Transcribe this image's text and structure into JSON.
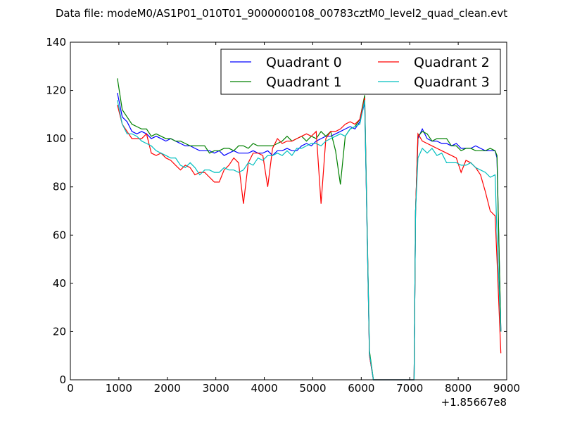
{
  "chart_data": {
    "type": "line",
    "title": "Data file: modeM0/AS1P01_010T01_9000000108_00783cztM0_level2_quad_clean.evt",
    "xlabel": "",
    "ylabel": "",
    "x_offset_label": "+1.85667e8",
    "xlim": [
      0,
      9000
    ],
    "ylim": [
      0,
      140
    ],
    "xticks": [
      0,
      1000,
      2000,
      3000,
      4000,
      5000,
      6000,
      7000,
      8000,
      9000
    ],
    "yticks": [
      0,
      20,
      40,
      60,
      80,
      100,
      120,
      140
    ],
    "grid": false,
    "legend": {
      "placement": "top-right",
      "columns": 2
    },
    "series": [
      {
        "name": "Quadrant 0",
        "color": "#0000ff",
        "x": [
          970,
          1070,
          1170,
          1270,
          1370,
          1470,
          1570,
          1670,
          1770,
          1870,
          1970,
          2070,
          2170,
          2270,
          2370,
          2470,
          2570,
          2670,
          2770,
          2870,
          2970,
          3070,
          3170,
          3270,
          3370,
          3470,
          3570,
          3670,
          3770,
          3870,
          3970,
          4070,
          4170,
          4270,
          4370,
          4470,
          4570,
          4670,
          4770,
          4870,
          4970,
          5070,
          5170,
          5270,
          5370,
          5470,
          5570,
          5670,
          5770,
          5870,
          5970,
          6070,
          6170,
          6250,
          6300,
          7090,
          7120,
          7170,
          7260,
          7360,
          7460,
          7560,
          7660,
          7760,
          7860,
          7960,
          8060,
          8160,
          8260,
          8360,
          8460,
          8560,
          8660,
          8760,
          8800,
          8880
        ],
        "values": [
          119,
          109,
          107,
          103,
          102,
          103,
          102,
          100,
          101,
          100,
          99,
          100,
          99,
          98,
          97,
          97,
          96,
          95,
          95,
          95,
          94,
          95,
          93,
          94,
          95,
          94,
          94,
          94,
          95,
          94,
          94,
          95,
          93,
          95,
          95,
          96,
          95,
          95,
          97,
          98,
          97,
          99,
          100,
          101,
          101,
          102,
          103,
          104,
          105,
          104,
          107,
          115,
          10,
          0,
          0,
          0,
          70,
          100,
          104,
          100,
          99,
          99,
          98,
          98,
          97,
          98,
          96,
          96,
          96,
          97,
          96,
          95,
          95,
          95,
          92,
          20
        ]
      },
      {
        "name": "Quadrant 1",
        "color": "#008000",
        "x": [
          970,
          1070,
          1170,
          1270,
          1370,
          1470,
          1570,
          1670,
          1770,
          1870,
          1970,
          2070,
          2170,
          2270,
          2370,
          2470,
          2570,
          2670,
          2770,
          2870,
          2970,
          3070,
          3170,
          3270,
          3370,
          3470,
          3570,
          3670,
          3770,
          3870,
          3970,
          4070,
          4170,
          4270,
          4370,
          4470,
          4570,
          4670,
          4770,
          4870,
          4970,
          5070,
          5170,
          5270,
          5370,
          5470,
          5570,
          5670,
          5770,
          5870,
          5970,
          6070,
          6170,
          6250,
          6300,
          7090,
          7120,
          7170,
          7260,
          7360,
          7460,
          7560,
          7660,
          7760,
          7860,
          7960,
          8060,
          8160,
          8260,
          8360,
          8460,
          8560,
          8660,
          8760,
          8800,
          8880
        ],
        "values": [
          125,
          112,
          109,
          106,
          105,
          104,
          104,
          101,
          102,
          101,
          100,
          100,
          99,
          99,
          98,
          97,
          97,
          97,
          97,
          94,
          95,
          95,
          96,
          96,
          95,
          97,
          97,
          96,
          98,
          97,
          97,
          97,
          97,
          98,
          99,
          101,
          99,
          100,
          101,
          99,
          101,
          100,
          103,
          101,
          103,
          95,
          81,
          101,
          104,
          105,
          108,
          118,
          12,
          0,
          0,
          0,
          70,
          101,
          103,
          102,
          99,
          100,
          100,
          100,
          97,
          97,
          95,
          96,
          96,
          95,
          95,
          95,
          96,
          95,
          93,
          20
        ]
      },
      {
        "name": "Quadrant 2",
        "color": "#ff0000",
        "x": [
          970,
          1070,
          1170,
          1270,
          1370,
          1470,
          1570,
          1670,
          1770,
          1870,
          1970,
          2070,
          2170,
          2270,
          2370,
          2470,
          2570,
          2670,
          2770,
          2870,
          2970,
          3070,
          3170,
          3270,
          3370,
          3470,
          3570,
          3670,
          3770,
          3870,
          3970,
          4070,
          4170,
          4270,
          4370,
          4470,
          4570,
          4670,
          4770,
          4870,
          4970,
          5070,
          5170,
          5270,
          5370,
          5470,
          5570,
          5670,
          5770,
          5870,
          5970,
          6070,
          6170,
          6250,
          6300,
          7090,
          7120,
          7170,
          7260,
          7360,
          7460,
          7560,
          7660,
          7760,
          7860,
          7960,
          8060,
          8160,
          8260,
          8360,
          8460,
          8560,
          8660,
          8760,
          8800,
          8880
        ],
        "values": [
          114,
          106,
          103,
          100,
          100,
          100,
          102,
          94,
          93,
          94,
          92,
          91,
          89,
          87,
          89,
          88,
          85,
          86,
          86,
          84,
          82,
          82,
          87,
          89,
          92,
          90,
          73,
          90,
          94,
          94,
          93,
          80,
          96,
          100,
          98,
          99,
          99,
          100,
          101,
          102,
          101,
          103,
          73,
          100,
          103,
          103,
          104,
          106,
          107,
          106,
          108,
          117,
          10,
          0,
          0,
          0,
          70,
          102,
          99,
          98,
          97,
          96,
          95,
          94,
          93,
          92,
          86,
          91,
          90,
          88,
          85,
          78,
          70,
          68,
          50,
          11
        ]
      },
      {
        "name": "Quadrant 3",
        "color": "#00bfbf",
        "x": [
          970,
          1070,
          1170,
          1270,
          1370,
          1470,
          1570,
          1670,
          1770,
          1870,
          1970,
          2070,
          2170,
          2270,
          2370,
          2470,
          2570,
          2670,
          2770,
          2870,
          2970,
          3070,
          3170,
          3270,
          3370,
          3470,
          3570,
          3670,
          3770,
          3870,
          3970,
          4070,
          4170,
          4270,
          4370,
          4470,
          4570,
          4670,
          4770,
          4870,
          4970,
          5070,
          5170,
          5270,
          5370,
          5470,
          5570,
          5670,
          5770,
          5870,
          5970,
          6070,
          6170,
          6250,
          6300,
          7090,
          7120,
          7170,
          7260,
          7360,
          7460,
          7560,
          7660,
          7760,
          7860,
          7960,
          8060,
          8160,
          8260,
          8360,
          8460,
          8560,
          8660,
          8760,
          8800,
          8880
        ],
        "values": [
          116,
          106,
          102,
          102,
          101,
          99,
          98,
          97,
          95,
          94,
          93,
          92,
          92,
          89,
          88,
          90,
          88,
          85,
          87,
          87,
          86,
          86,
          88,
          87,
          87,
          86,
          87,
          90,
          89,
          92,
          91,
          93,
          93,
          94,
          93,
          95,
          93,
          96,
          96,
          97,
          98,
          98,
          97,
          99,
          100,
          101,
          102,
          101,
          104,
          105,
          106,
          116,
          11,
          0,
          0,
          0,
          70,
          92,
          96,
          94,
          96,
          93,
          94,
          90,
          90,
          90,
          89,
          89,
          90,
          88,
          87,
          86,
          84,
          85,
          60,
          20
        ]
      }
    ]
  }
}
